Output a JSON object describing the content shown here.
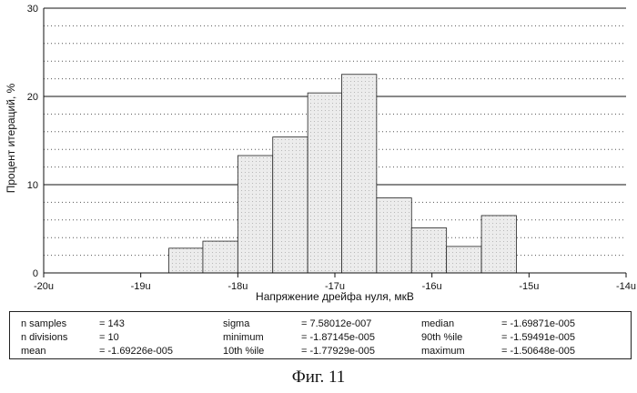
{
  "chart_data": {
    "type": "bar",
    "variant": "histogram",
    "xlabel": "Напряжение дрейфа нуля, мкВ",
    "ylabel": "Процент итераций, %",
    "xlim": [
      -20,
      -14
    ],
    "ylim": [
      0,
      30
    ],
    "x_ticks": [
      -20,
      -19,
      -18,
      -17,
      -16,
      -15,
      -14
    ],
    "x_tick_labels": [
      "-20u",
      "-19u",
      "-18u",
      "-17u",
      "-16u",
      "-15u",
      "-14u"
    ],
    "y_ticks": [
      0,
      10,
      20,
      30
    ],
    "y_tick_labels": [
      "0",
      "10",
      "20",
      "30"
    ],
    "grid": "major and minor horizontal lines",
    "bins": [
      {
        "x0": -18.71,
        "x1": -18.36,
        "value": 2.8
      },
      {
        "x0": -18.36,
        "x1": -18.0,
        "value": 3.6
      },
      {
        "x0": -18.0,
        "x1": -17.64,
        "value": 13.3
      },
      {
        "x0": -17.64,
        "x1": -17.28,
        "value": 15.4
      },
      {
        "x0": -17.28,
        "x1": -16.93,
        "value": 20.4
      },
      {
        "x0": -16.93,
        "x1": -16.57,
        "value": 22.5
      },
      {
        "x0": -16.57,
        "x1": -16.21,
        "value": 8.5
      },
      {
        "x0": -16.21,
        "x1": -15.85,
        "value": 5.1
      },
      {
        "x0": -15.85,
        "x1": -15.49,
        "value": 3.0
      },
      {
        "x0": -15.49,
        "x1": -15.13,
        "value": 6.5
      }
    ],
    "colors": {
      "bar_fill": "#e6e6e6",
      "bar_edge": "#222222",
      "axis": "#111111"
    }
  },
  "stats": {
    "n_samples_label": "n samples",
    "n_samples_value": "= 143",
    "n_divisions_label": "n divisions",
    "n_divisions_value": "= 10",
    "mean_label": "mean",
    "mean_value": "= -1.69226e-005",
    "sigma_label": "sigma",
    "sigma_value": "= 7.58012e-007",
    "minimum_label": "minimum",
    "minimum_value": "= -1.87145e-005",
    "p10_label": "10th %ile",
    "p10_value": "= -1.77929e-005",
    "median_label": "median",
    "median_value": "= -1.69871e-005",
    "p90_label": "90th %ile",
    "p90_value": "= -1.59491e-005",
    "maximum_label": "maximum",
    "maximum_value": "= -1.50648e-005"
  },
  "caption": "Фиг. 11"
}
